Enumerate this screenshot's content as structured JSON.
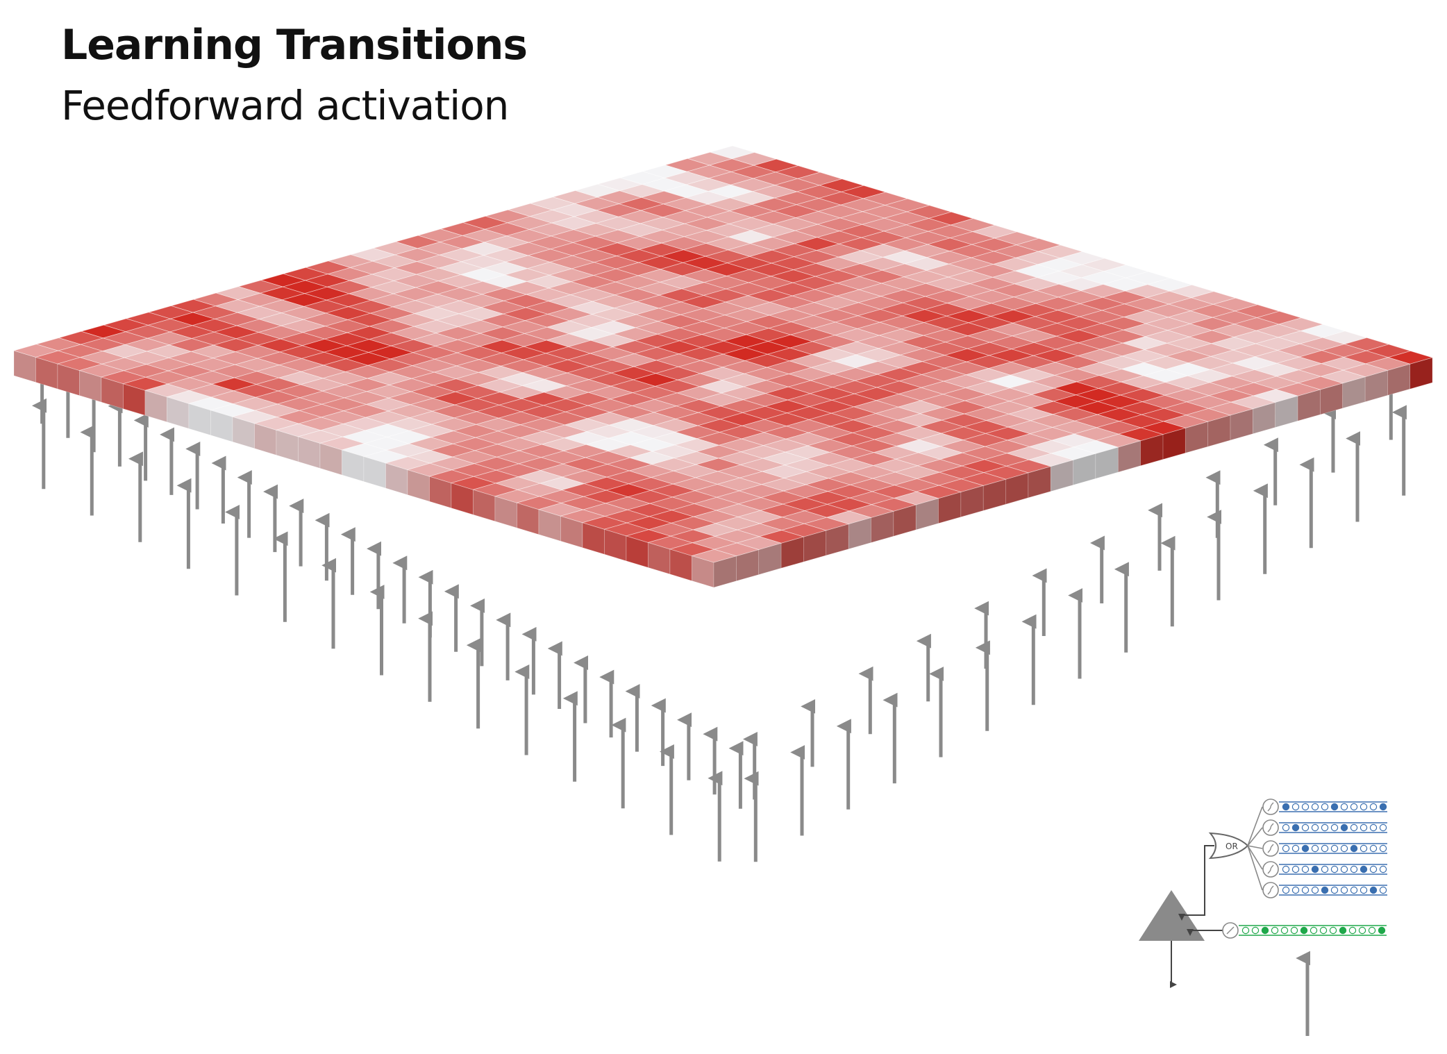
{
  "header": {
    "title": "Learning Transitions",
    "subtitle": "Feedforward activation"
  },
  "grid": {
    "rows": 32,
    "cols": 32,
    "cell_color_low": "#f4f4f6",
    "cell_color_high": "#d22a22",
    "seed": 17
  },
  "arrows": {
    "color": "#8a8a8a"
  },
  "neuron_inset": {
    "gate_label": "OR",
    "distal_segments": 5,
    "distal_color": "#3a6fb0",
    "proximal_color": "#1fa84a",
    "soma_color": "#8a8a8a"
  }
}
